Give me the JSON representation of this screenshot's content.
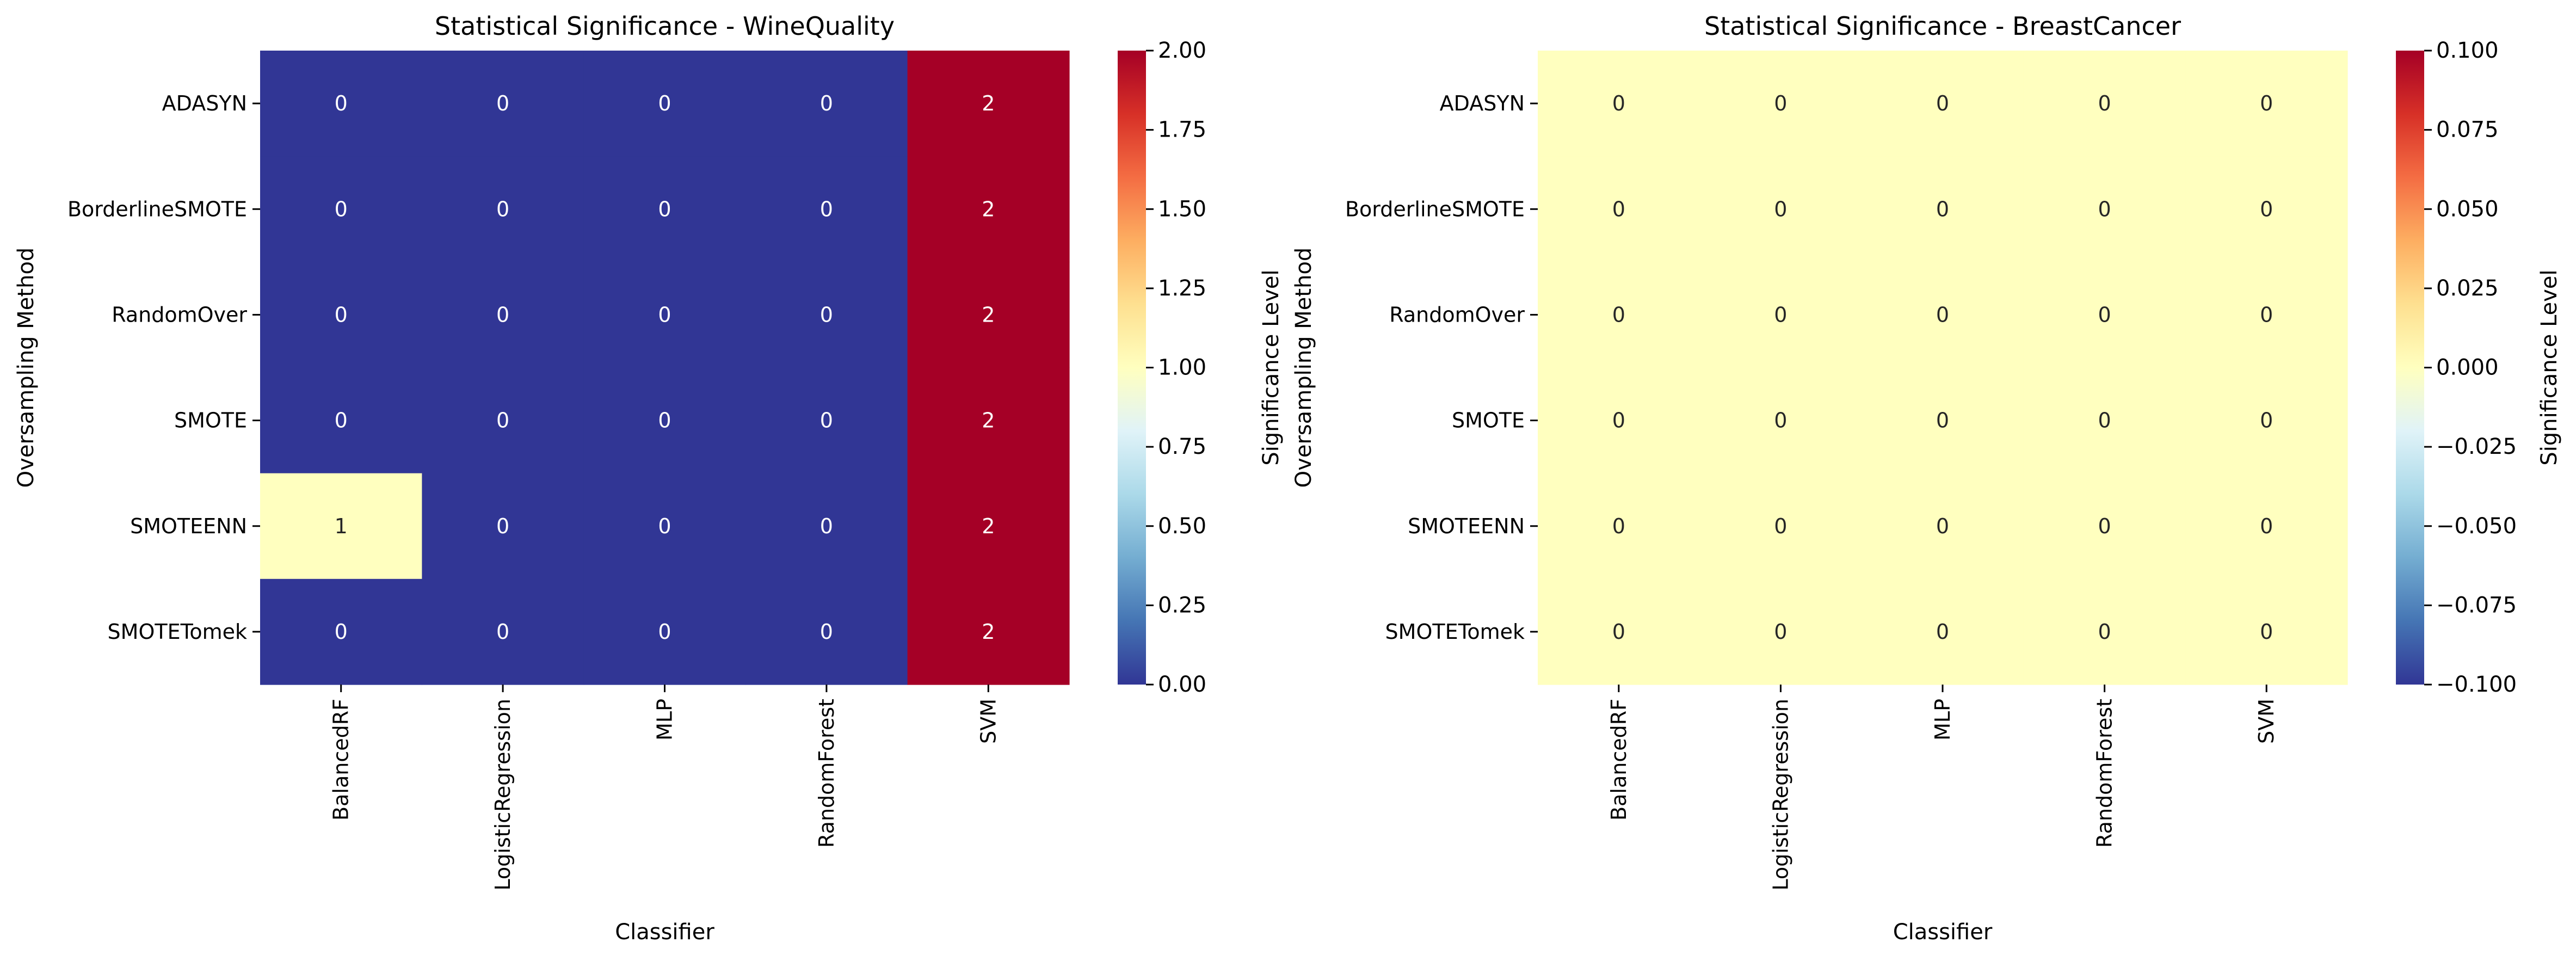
{
  "chart_data": [
    {
      "type": "heatmap",
      "title": "Statistical Significance - WineQuality",
      "xlabel": "Classifier",
      "ylabel": "Oversampling Method",
      "x_categories": [
        "BalancedRF",
        "LogisticRegression",
        "MLP",
        "RandomForest",
        "SVM"
      ],
      "y_categories": [
        "ADASYN",
        "BorderlineSMOTE",
        "RandomOver",
        "SMOTE",
        "SMOTEENN",
        "SMOTETomek"
      ],
      "values": [
        [
          0,
          0,
          0,
          0,
          2
        ],
        [
          0,
          0,
          0,
          0,
          2
        ],
        [
          0,
          0,
          0,
          0,
          2
        ],
        [
          0,
          0,
          0,
          0,
          2
        ],
        [
          1,
          0,
          0,
          0,
          2
        ],
        [
          0,
          0,
          0,
          0,
          2
        ]
      ],
      "annotations": [
        [
          "0",
          "0",
          "0",
          "0",
          "2"
        ],
        [
          "0",
          "0",
          "0",
          "0",
          "2"
        ],
        [
          "0",
          "0",
          "0",
          "0",
          "2"
        ],
        [
          "0",
          "0",
          "0",
          "0",
          "2"
        ],
        [
          "1",
          "0",
          "0",
          "0",
          "2"
        ],
        [
          "0",
          "0",
          "0",
          "0",
          "2"
        ]
      ],
      "colormap": "RdYlBu_r",
      "colorbar": {
        "label": "Significance Level",
        "range": [
          0.0,
          2.0
        ],
        "ticks": [
          0.0,
          0.25,
          0.5,
          0.75,
          1.0,
          1.25,
          1.5,
          1.75,
          2.0
        ],
        "tick_labels": [
          "0.00",
          "0.25",
          "0.50",
          "0.75",
          "1.00",
          "1.25",
          "1.50",
          "1.75",
          "2.00"
        ]
      }
    },
    {
      "type": "heatmap",
      "title": "Statistical Significance - BreastCancer",
      "xlabel": "Classifier",
      "ylabel": "Oversampling Method",
      "x_categories": [
        "BalancedRF",
        "LogisticRegression",
        "MLP",
        "RandomForest",
        "SVM"
      ],
      "y_categories": [
        "ADASYN",
        "BorderlineSMOTE",
        "RandomOver",
        "SMOTE",
        "SMOTEENN",
        "SMOTETomek"
      ],
      "values": [
        [
          0,
          0,
          0,
          0,
          0
        ],
        [
          0,
          0,
          0,
          0,
          0
        ],
        [
          0,
          0,
          0,
          0,
          0
        ],
        [
          0,
          0,
          0,
          0,
          0
        ],
        [
          0,
          0,
          0,
          0,
          0
        ],
        [
          0,
          0,
          0,
          0,
          0
        ]
      ],
      "annotations": [
        [
          "0",
          "0",
          "0",
          "0",
          "0"
        ],
        [
          "0",
          "0",
          "0",
          "0",
          "0"
        ],
        [
          "0",
          "0",
          "0",
          "0",
          "0"
        ],
        [
          "0",
          "0",
          "0",
          "0",
          "0"
        ],
        [
          "0",
          "0",
          "0",
          "0",
          "0"
        ],
        [
          "0",
          "0",
          "0",
          "0",
          "0"
        ]
      ],
      "colormap": "RdYlBu_r",
      "colorbar": {
        "label": "Significance Level",
        "range": [
          -0.1,
          0.1
        ],
        "ticks": [
          -0.1,
          -0.075,
          -0.05,
          -0.025,
          0.0,
          0.025,
          0.05,
          0.075,
          0.1
        ],
        "tick_labels": [
          "−0.100",
          "−0.075",
          "−0.050",
          "−0.025",
          "0.000",
          "0.025",
          "0.050",
          "0.075",
          "0.100"
        ]
      }
    }
  ],
  "colors": {
    "low": "#313695",
    "mid": "#ffffbf",
    "high": "#a50026",
    "text_dark_bg": "#ffffff",
    "text_light_bg": "#262626"
  }
}
